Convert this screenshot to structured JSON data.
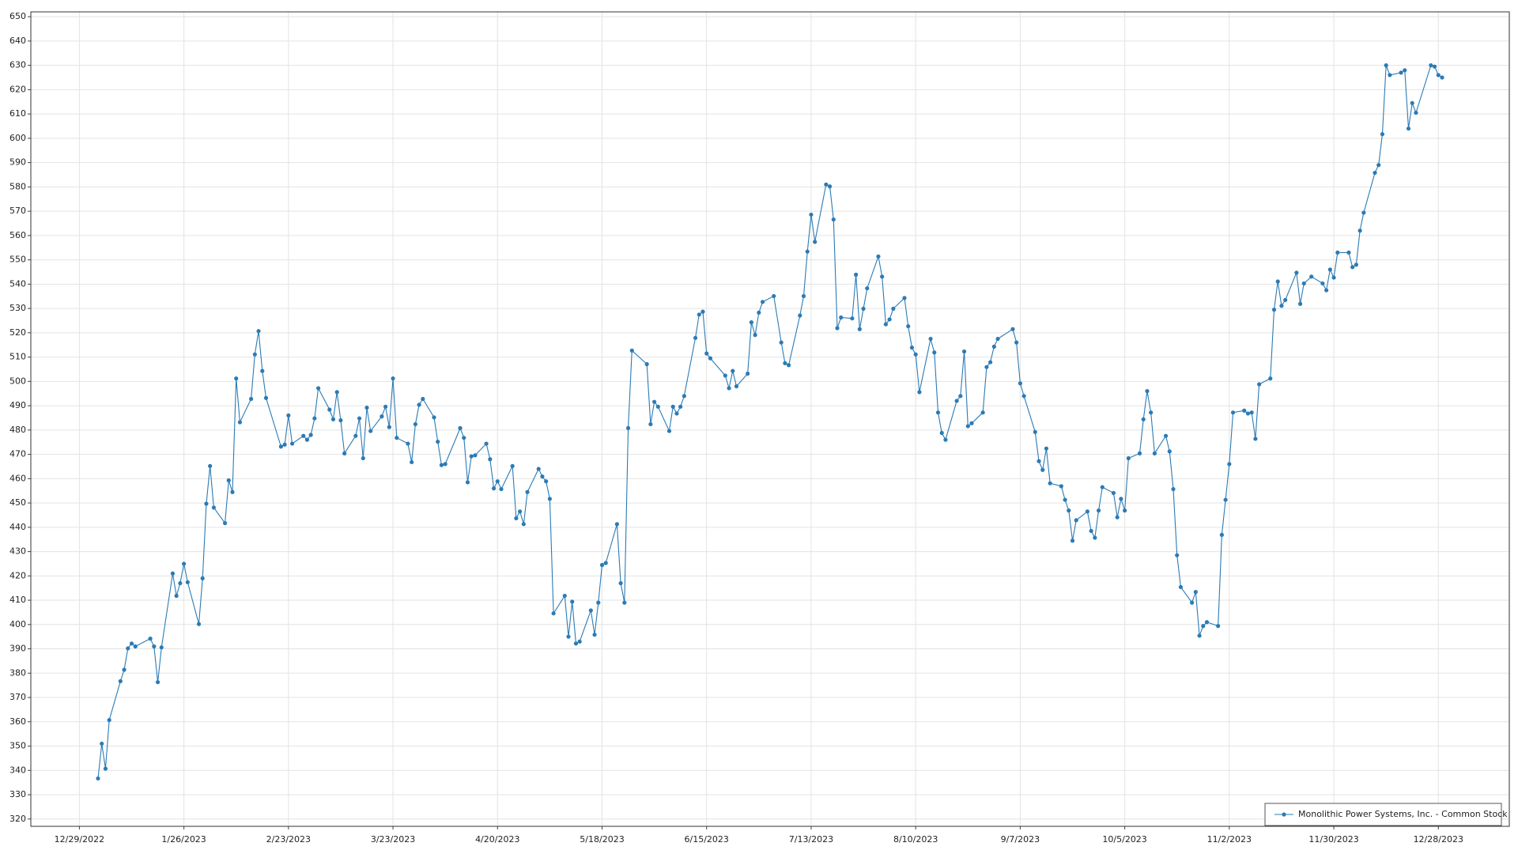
{
  "chart_data": {
    "type": "line",
    "x": [
      "1/3/2023",
      "1/4/2023",
      "1/5/2023",
      "1/6/2023",
      "1/9/2023",
      "1/10/2023",
      "1/11/2023",
      "1/12/2023",
      "1/13/2023",
      "1/17/2023",
      "1/18/2023",
      "1/19/2023",
      "1/20/2023",
      "1/23/2023",
      "1/24/2023",
      "1/25/2023",
      "1/26/2023",
      "1/27/2023",
      "1/30/2023",
      "1/31/2023",
      "2/1/2023",
      "2/2/2023",
      "2/3/2023",
      "2/6/2023",
      "2/7/2023",
      "2/8/2023",
      "2/9/2023",
      "2/10/2023",
      "2/13/2023",
      "2/14/2023",
      "2/15/2023",
      "2/16/2023",
      "2/17/2023",
      "2/21/2023",
      "2/22/2023",
      "2/23/2023",
      "2/24/2023",
      "2/27/2023",
      "2/28/2023",
      "3/1/2023",
      "3/2/2023",
      "3/3/2023",
      "3/6/2023",
      "3/7/2023",
      "3/8/2023",
      "3/9/2023",
      "3/10/2023",
      "3/13/2023",
      "3/14/2023",
      "3/15/2023",
      "3/16/2023",
      "3/17/2023",
      "3/20/2023",
      "3/21/2023",
      "3/22/2023",
      "3/23/2023",
      "3/24/2023",
      "3/27/2023",
      "3/28/2023",
      "3/29/2023",
      "3/30/2023",
      "3/31/2023",
      "4/3/2023",
      "4/4/2023",
      "4/5/2023",
      "4/6/2023",
      "4/10/2023",
      "4/11/2023",
      "4/12/2023",
      "4/13/2023",
      "4/14/2023",
      "4/17/2023",
      "4/18/2023",
      "4/19/2023",
      "4/20/2023",
      "4/21/2023",
      "4/24/2023",
      "4/25/2023",
      "4/26/2023",
      "4/27/2023",
      "4/28/2023",
      "5/1/2023",
      "5/2/2023",
      "5/3/2023",
      "5/4/2023",
      "5/5/2023",
      "5/8/2023",
      "5/9/2023",
      "5/10/2023",
      "5/11/2023",
      "5/12/2023",
      "5/15/2023",
      "5/16/2023",
      "5/17/2023",
      "5/18/2023",
      "5/19/2023",
      "5/22/2023",
      "5/23/2023",
      "5/24/2023",
      "5/25/2023",
      "5/26/2023",
      "5/30/2023",
      "5/31/2023",
      "6/1/2023",
      "6/2/2023",
      "6/5/2023",
      "6/6/2023",
      "6/7/2023",
      "6/8/2023",
      "6/9/2023",
      "6/12/2023",
      "6/13/2023",
      "6/14/2023",
      "6/15/2023",
      "6/16/2023",
      "6/20/2023",
      "6/21/2023",
      "6/22/2023",
      "6/23/2023",
      "6/26/2023",
      "6/27/2023",
      "6/28/2023",
      "6/29/2023",
      "6/30/2023",
      "7/3/2023",
      "7/5/2023",
      "7/6/2023",
      "7/7/2023",
      "7/10/2023",
      "7/11/2023",
      "7/12/2023",
      "7/13/2023",
      "7/14/2023",
      "7/17/2023",
      "7/18/2023",
      "7/19/2023",
      "7/20/2023",
      "7/21/2023",
      "7/24/2023",
      "7/25/2023",
      "7/26/2023",
      "7/27/2023",
      "7/28/2023",
      "7/31/2023",
      "8/1/2023",
      "8/2/2023",
      "8/3/2023",
      "8/4/2023",
      "8/7/2023",
      "8/8/2023",
      "8/9/2023",
      "8/10/2023",
      "8/11/2023",
      "8/14/2023",
      "8/15/2023",
      "8/16/2023",
      "8/17/2023",
      "8/18/2023",
      "8/21/2023",
      "8/22/2023",
      "8/23/2023",
      "8/24/2023",
      "8/25/2023",
      "8/28/2023",
      "8/29/2023",
      "8/30/2023",
      "8/31/2023",
      "9/1/2023",
      "9/5/2023",
      "9/6/2023",
      "9/7/2023",
      "9/8/2023",
      "9/11/2023",
      "9/12/2023",
      "9/13/2023",
      "9/14/2023",
      "9/15/2023",
      "9/18/2023",
      "9/19/2023",
      "9/20/2023",
      "9/21/2023",
      "9/22/2023",
      "9/25/2023",
      "9/26/2023",
      "9/27/2023",
      "9/28/2023",
      "9/29/2023",
      "10/2/2023",
      "10/3/2023",
      "10/4/2023",
      "10/5/2023",
      "10/6/2023",
      "10/9/2023",
      "10/10/2023",
      "10/11/2023",
      "10/12/2023",
      "10/13/2023",
      "10/16/2023",
      "10/17/2023",
      "10/18/2023",
      "10/19/2023",
      "10/20/2023",
      "10/23/2023",
      "10/24/2023",
      "10/25/2023",
      "10/26/2023",
      "10/27/2023",
      "10/30/2023",
      "10/31/2023",
      "11/1/2023",
      "11/2/2023",
      "11/3/2023",
      "11/6/2023",
      "11/7/2023",
      "11/8/2023",
      "11/9/2023",
      "11/10/2023",
      "11/13/2023",
      "11/14/2023",
      "11/15/2023",
      "11/16/2023",
      "11/17/2023",
      "11/20/2023",
      "11/21/2023",
      "11/22/2023",
      "11/24/2023",
      "11/27/2023",
      "11/28/2023",
      "11/29/2023",
      "11/30/2023",
      "12/1/2023",
      "12/4/2023",
      "12/5/2023",
      "12/6/2023",
      "12/7/2023",
      "12/8/2023",
      "12/11/2023",
      "12/12/2023",
      "12/13/2023",
      "12/14/2023",
      "12/15/2023",
      "12/18/2023",
      "12/19/2023",
      "12/20/2023",
      "12/21/2023",
      "12/22/2023",
      "12/26/2023",
      "12/27/2023",
      "12/28/2023",
      "12/29/2023"
    ],
    "series": [
      {
        "name": "Monolithic Power Systems, Inc. - Common Stock",
        "color": "#2b7bb5",
        "values": [
          336.7,
          351,
          340.7,
          360.7,
          376.7,
          381.4,
          390.2,
          392.2,
          391,
          394.2,
          391,
          376.3,
          390.6,
          421,
          411.8,
          417,
          425,
          417.4,
          400.2,
          419,
          449.7,
          465.2,
          448.1,
          441.7,
          459.3,
          454.5,
          501.2,
          483.2,
          492.8,
          511.1,
          520.7,
          504.3,
          493.2,
          473.2,
          474,
          486,
          474.4,
          477.6,
          476,
          478,
          484.8,
          497.2,
          488.4,
          484.4,
          495.6,
          484,
          470.4,
          477.6,
          484.8,
          468.4,
          489.2,
          479.6,
          485.6,
          489.6,
          481.2,
          501.2,
          476.8,
          474.4,
          466.8,
          482.4,
          490.4,
          492.8,
          485.2,
          475.2,
          465.6,
          466,
          480.8,
          476.8,
          458.5,
          469.2,
          469.6,
          474.4,
          468,
          456,
          458.9,
          455.7,
          465.2,
          443.7,
          446.5,
          441.3,
          454.5,
          464,
          460.9,
          458.9,
          451.7,
          404.6,
          411.8,
          395,
          409.4,
          392.2,
          393,
          405.8,
          395.8,
          409,
          424.5,
          425.3,
          441.3,
          417,
          409,
          480.8,
          512.7,
          507.1,
          482.4,
          491.6,
          489.6,
          479.6,
          489.6,
          486.8,
          489.6,
          494,
          517.9,
          527.5,
          528.7,
          511.5,
          509.5,
          502.4,
          497.2,
          504.3,
          498,
          503.2,
          524.3,
          519.1,
          528.3,
          532.7,
          535.1,
          516,
          507.5,
          506.7,
          527.1,
          535.1,
          553.4,
          568.6,
          557.4,
          581,
          580.2,
          566.6,
          521.9,
          526.3,
          525.9,
          543.9,
          521.5,
          529.9,
          538.3,
          551.4,
          543.1,
          523.5,
          525.5,
          529.9,
          534.3,
          522.7,
          513.9,
          511.1,
          495.6,
          517.5,
          511.9,
          487.2,
          478.8,
          476,
          492,
          494,
          512.3,
          481.6,
          482.8,
          487.2,
          505.9,
          507.9,
          514.3,
          517.5,
          521.5,
          516,
          499.2,
          494,
          479.2,
          467.2,
          463.6,
          472.4,
          458.1,
          456.9,
          451.3,
          446.9,
          434.5,
          442.9,
          446.5,
          438.5,
          435.7,
          446.9,
          456.5,
          454.1,
          444.1,
          451.7,
          446.9,
          468.4,
          470.4,
          484.4,
          496,
          487.2,
          470.4,
          477.6,
          471.2,
          455.7,
          428.5,
          415.4,
          409,
          413.4,
          395.4,
          399.4,
          401,
          399.4,
          436.9,
          451.3,
          466,
          487.2,
          488,
          486.8,
          487.2,
          476.4,
          498.8,
          501.2,
          529.5,
          541.1,
          531.1,
          533.5,
          544.7,
          531.9,
          540.3,
          543.1,
          540.3,
          537.5,
          546,
          542.7,
          553,
          553,
          547,
          548,
          562,
          569.4,
          585.8,
          589,
          601.7,
          630,
          626,
          627,
          628,
          604,
          614.5,
          610.5,
          630,
          629.5,
          626,
          625
        ]
      }
    ],
    "xlim": [
      "12/16/2022",
      "1/16/2024"
    ],
    "xticks": [
      "12/29/2022",
      "1/26/2023",
      "2/23/2023",
      "3/23/2023",
      "4/20/2023",
      "5/18/2023",
      "6/15/2023",
      "7/13/2023",
      "8/10/2023",
      "9/7/2023",
      "10/5/2023",
      "11/2/2023",
      "11/30/2023",
      "12/28/2023"
    ],
    "ylim": [
      317,
      652
    ],
    "yticks": [
      320,
      330,
      340,
      350,
      360,
      370,
      380,
      390,
      400,
      410,
      420,
      430,
      440,
      450,
      460,
      470,
      480,
      490,
      500,
      510,
      520,
      530,
      540,
      550,
      560,
      570,
      580,
      590,
      600,
      610,
      620,
      630,
      640,
      650
    ],
    "grid": true,
    "legend": "lower right"
  }
}
